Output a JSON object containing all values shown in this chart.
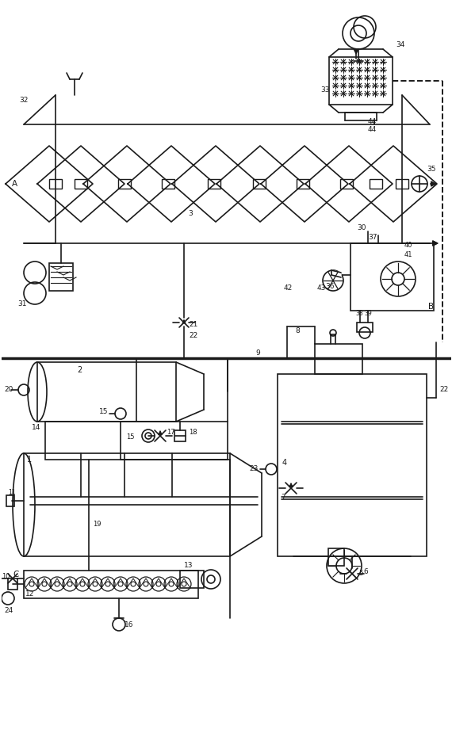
{
  "bg": "#ffffff",
  "lc": "#1a1a1a",
  "lw": 1.2,
  "fig_w": 5.67,
  "fig_h": 9.21
}
